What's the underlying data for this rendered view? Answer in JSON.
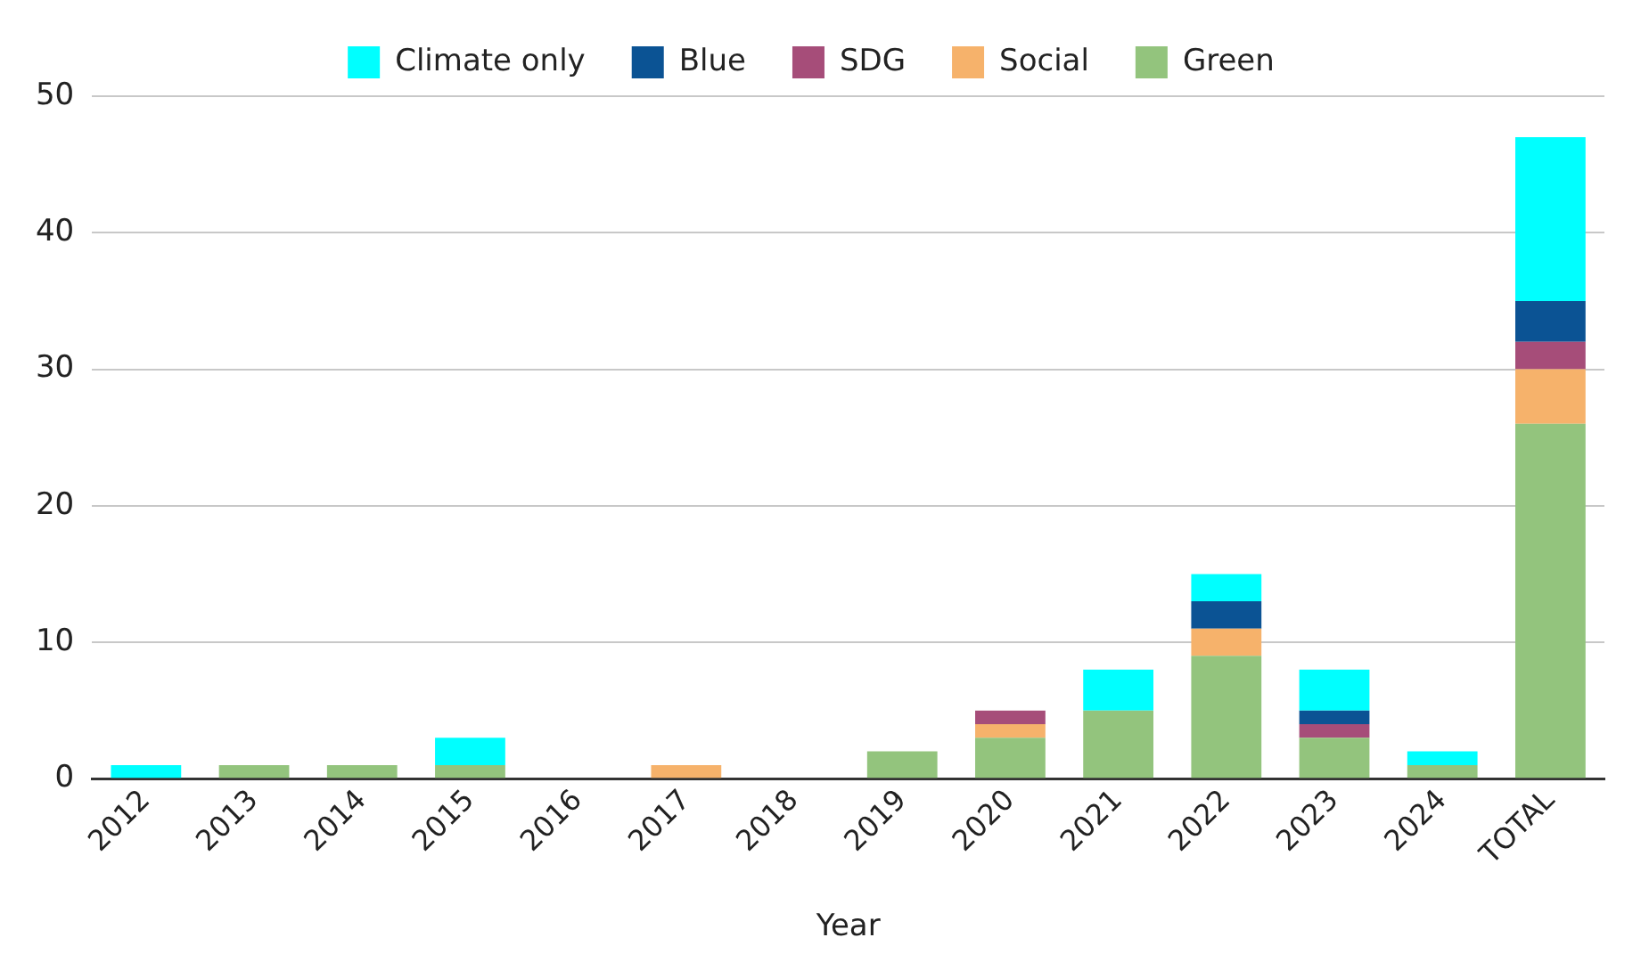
{
  "chart_data": {
    "type": "bar",
    "stacked": true,
    "xlabel": "Year",
    "categories": [
      "2012",
      "2013",
      "2014",
      "2015",
      "2016",
      "2017",
      "2018",
      "2019",
      "2020",
      "2021",
      "2022",
      "2023",
      "2024",
      "TOTAL"
    ],
    "series": [
      {
        "name": "Green",
        "color": "#93c47d",
        "values": [
          0,
          1,
          1,
          1,
          0,
          0,
          0,
          2,
          3,
          5,
          9,
          3,
          1,
          26
        ]
      },
      {
        "name": "Social",
        "color": "#f6b26b",
        "values": [
          0,
          0,
          0,
          0,
          0,
          1,
          0,
          0,
          1,
          0,
          2,
          0,
          0,
          4
        ]
      },
      {
        "name": "SDG",
        "color": "#a64d79",
        "values": [
          0,
          0,
          0,
          0,
          0,
          0,
          0,
          0,
          1,
          0,
          0,
          1,
          0,
          2
        ]
      },
      {
        "name": "Blue",
        "color": "#0b5394",
        "values": [
          0,
          0,
          0,
          0,
          0,
          0,
          0,
          0,
          0,
          0,
          2,
          1,
          0,
          3
        ]
      },
      {
        "name": "Climate only",
        "color": "#00ffff",
        "values": [
          1,
          0,
          0,
          2,
          0,
          0,
          0,
          0,
          0,
          3,
          2,
          3,
          1,
          12
        ]
      }
    ],
    "ylim": [
      0,
      50
    ],
    "yticks": [
      0,
      10,
      20,
      30,
      40,
      50
    ],
    "grid": "y",
    "legend": "top"
  }
}
